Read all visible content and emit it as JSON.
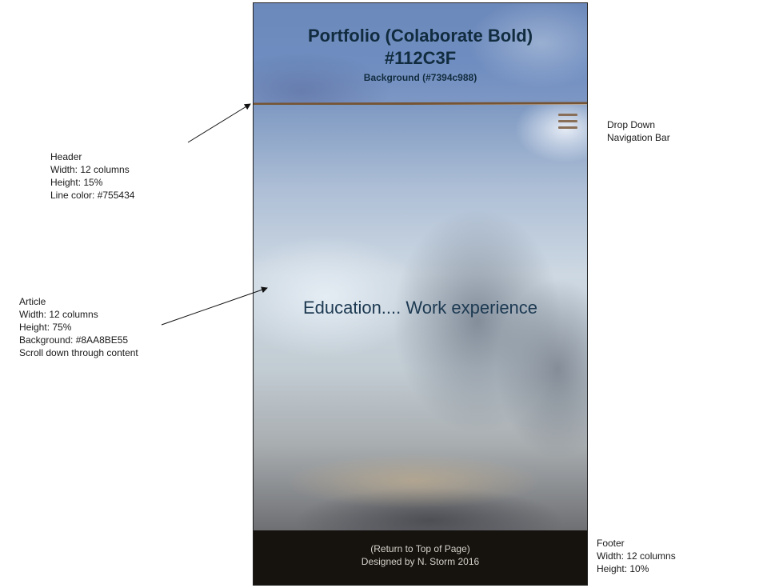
{
  "mockup": {
    "header": {
      "title": "Portfolio (Colaborate Bold)",
      "title_color_label": "#112C3F",
      "background_label": "Background (#7394c988)"
    },
    "article": {
      "text": "Education.... Work experience"
    },
    "nav_icon": "hamburger-menu-icon",
    "footer": {
      "return_link": "(Return to Top of Page)",
      "credit": "Designed by N. Storm 2016"
    }
  },
  "annotations": {
    "header": [
      "Header",
      "Width: 12 columns",
      "Height: 15%",
      "Line color: #755434"
    ],
    "article": [
      "Article",
      "Width: 12 columns",
      "Height: 75%",
      "Background: #8AA8BE55",
      "Scroll down through content"
    ],
    "nav": [
      "Drop Down",
      "Navigation Bar"
    ],
    "footer": [
      "Footer",
      "Width: 12 columns",
      "Height: 10%"
    ]
  },
  "colors": {
    "title_text": "#112C3F",
    "header_background": "#7394c9",
    "header_line": "#755434",
    "article_background": "#8AA8BE",
    "footer_background": "#16130f"
  }
}
